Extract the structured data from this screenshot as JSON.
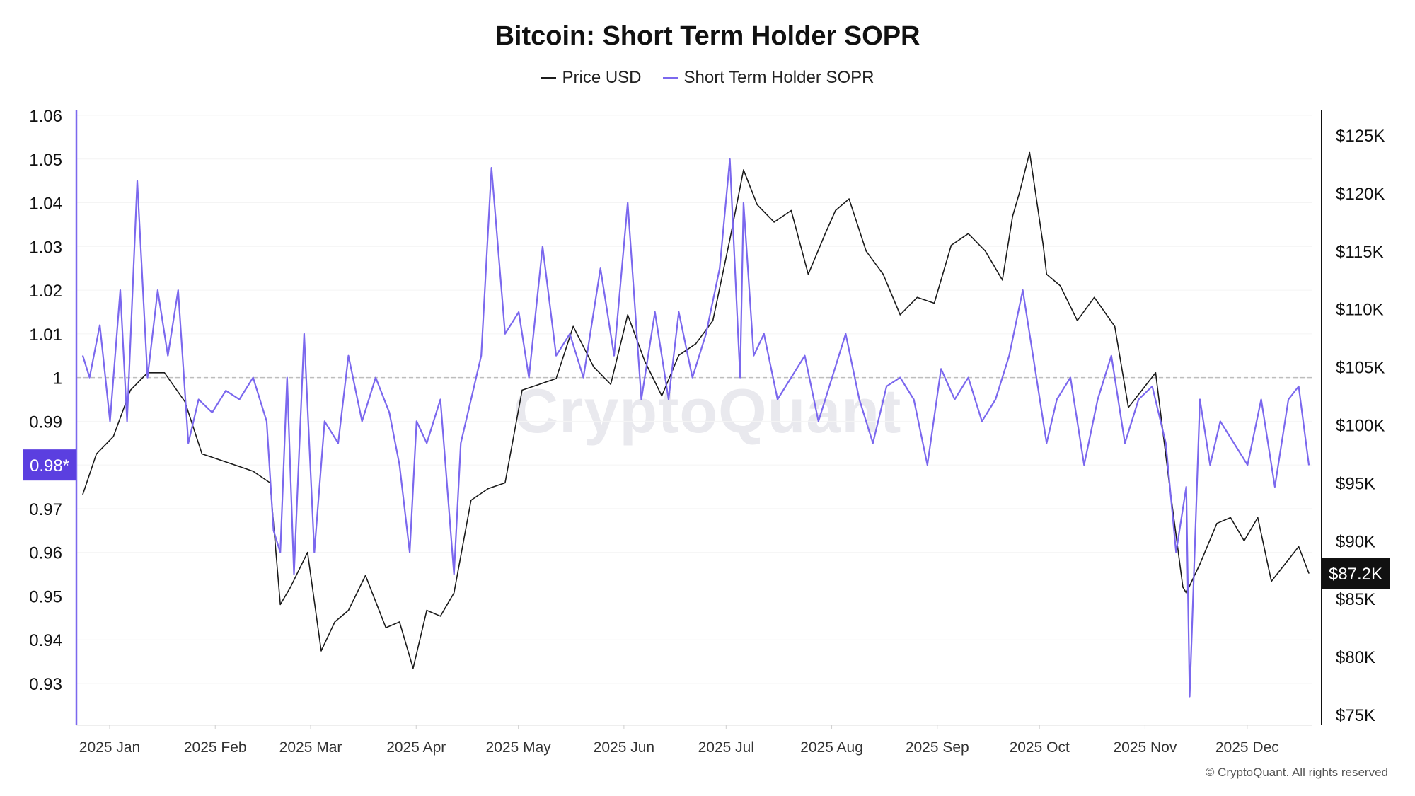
{
  "title": "Bitcoin: Short Term Holder SOPR",
  "watermark": "CryptoQuant",
  "copyright": "© CryptoQuant. All rights reserved",
  "colors": {
    "price": "#1a1a1a",
    "sopr": "#7b68ee",
    "axis_left": "#7b68ee",
    "badge_left": "#5b3fe0",
    "badge_right": "#111111",
    "ref_line": "#bdbdbd"
  },
  "legend": [
    {
      "name": "Price USD",
      "color": "#1a1a1a"
    },
    {
      "name": "Short Term Holder SOPR",
      "color": "#7b68ee"
    }
  ],
  "badges": {
    "left": "0.98*",
    "right": "$87.2K"
  },
  "chart_data": {
    "type": "line",
    "x_ticks": [
      "2025 Jan",
      "2025 Feb",
      "2025 Mar",
      "2025 Apr",
      "2025 May",
      "2025 Jun",
      "2025 Jul",
      "2025 Aug",
      "2025 Sep",
      "2025 Oct",
      "2025 Nov",
      "2025 Dec"
    ],
    "y_left": {
      "ticks": [
        "0.93",
        "0.94",
        "0.95",
        "0.96",
        "0.97",
        "0.98",
        "0.99",
        "1",
        "1.01",
        "1.02",
        "1.03",
        "1.04",
        "1.05",
        "1.06"
      ],
      "range": [
        0.92,
        1.06
      ]
    },
    "y_right": {
      "ticks": [
        "$75K",
        "$80K",
        "$85K",
        "$90K",
        "$95K",
        "$100K",
        "$105K",
        "$110K",
        "$115K",
        "$120K",
        "$125K"
      ],
      "range": [
        74000,
        126000
      ]
    },
    "reference_line": 1,
    "series": [
      {
        "name": "Price USD",
        "axis": "right",
        "x": [
          "2025-01-01",
          "2025-01-05",
          "2025-01-10",
          "2025-01-15",
          "2025-01-20",
          "2025-01-25",
          "2025-01-31",
          "2025-02-05",
          "2025-02-10",
          "2025-02-15",
          "2025-02-20",
          "2025-02-25",
          "2025-02-28",
          "2025-03-03",
          "2025-03-08",
          "2025-03-12",
          "2025-03-16",
          "2025-03-20",
          "2025-03-25",
          "2025-03-31",
          "2025-04-04",
          "2025-04-08",
          "2025-04-12",
          "2025-04-16",
          "2025-04-20",
          "2025-04-25",
          "2025-04-30",
          "2025-05-05",
          "2025-05-10",
          "2025-05-15",
          "2025-05-20",
          "2025-05-25",
          "2025-05-31",
          "2025-06-05",
          "2025-06-10",
          "2025-06-15",
          "2025-06-20",
          "2025-06-25",
          "2025-06-30",
          "2025-07-05",
          "2025-07-10",
          "2025-07-14",
          "2025-07-18",
          "2025-07-23",
          "2025-07-28",
          "2025-08-02",
          "2025-08-07",
          "2025-08-10",
          "2025-08-14",
          "2025-08-19",
          "2025-08-24",
          "2025-08-29",
          "2025-09-03",
          "2025-09-08",
          "2025-09-13",
          "2025-09-18",
          "2025-09-23",
          "2025-09-28",
          "2025-10-01",
          "2025-10-03",
          "2025-10-06",
          "2025-10-10",
          "2025-10-11",
          "2025-10-15",
          "2025-10-20",
          "2025-10-25",
          "2025-10-31",
          "2025-11-04",
          "2025-11-08",
          "2025-11-12",
          "2025-11-16",
          "2025-11-20",
          "2025-11-21",
          "2025-11-25",
          "2025-11-30",
          "2025-12-04",
          "2025-12-08",
          "2025-12-12",
          "2025-12-16",
          "2025-12-20",
          "2025-12-24",
          "2025-12-27"
        ],
        "values": [
          94000,
          97500,
          99000,
          103000,
          104500,
          104500,
          102000,
          97500,
          97000,
          96500,
          96000,
          95000,
          84500,
          86000,
          89000,
          80500,
          83000,
          84000,
          87000,
          82500,
          83000,
          79000,
          84000,
          83500,
          85500,
          93500,
          94500,
          95000,
          103000,
          103500,
          104000,
          108500,
          105000,
          103500,
          109500,
          105500,
          102500,
          106000,
          107000,
          109000,
          116000,
          122000,
          119000,
          117500,
          118500,
          113000,
          116500,
          118500,
          119500,
          115000,
          113000,
          109500,
          111000,
          110500,
          115500,
          116500,
          115000,
          112500,
          118000,
          120000,
          123500,
          115500,
          113000,
          112000,
          109000,
          111000,
          108500,
          101500,
          103000,
          104500,
          95000,
          86000,
          85500,
          88000,
          91500,
          92000,
          90000,
          92000,
          86500,
          88000,
          89500,
          87200
        ]
      },
      {
        "name": "Short Term Holder SOPR",
        "axis": "left",
        "x": [
          "2025-01-01",
          "2025-01-03",
          "2025-01-06",
          "2025-01-09",
          "2025-01-12",
          "2025-01-14",
          "2025-01-17",
          "2025-01-20",
          "2025-01-23",
          "2025-01-26",
          "2025-01-29",
          "2025-02-01",
          "2025-02-04",
          "2025-02-08",
          "2025-02-12",
          "2025-02-16",
          "2025-02-20",
          "2025-02-24",
          "2025-02-26",
          "2025-02-28",
          "2025-03-02",
          "2025-03-04",
          "2025-03-07",
          "2025-03-10",
          "2025-03-13",
          "2025-03-17",
          "2025-03-20",
          "2025-03-24",
          "2025-03-28",
          "2025-04-01",
          "2025-04-04",
          "2025-04-07",
          "2025-04-09",
          "2025-04-12",
          "2025-04-16",
          "2025-04-20",
          "2025-04-22",
          "2025-04-25",
          "2025-04-28",
          "2025-05-01",
          "2025-05-05",
          "2025-05-09",
          "2025-05-12",
          "2025-05-16",
          "2025-05-20",
          "2025-05-24",
          "2025-05-28",
          "2025-06-02",
          "2025-06-06",
          "2025-06-10",
          "2025-06-14",
          "2025-06-18",
          "2025-06-22",
          "2025-06-25",
          "2025-06-29",
          "2025-07-03",
          "2025-07-07",
          "2025-07-10",
          "2025-07-13",
          "2025-07-14",
          "2025-07-17",
          "2025-07-20",
          "2025-07-24",
          "2025-07-28",
          "2025-08-01",
          "2025-08-05",
          "2025-08-09",
          "2025-08-13",
          "2025-08-17",
          "2025-08-21",
          "2025-08-25",
          "2025-08-29",
          "2025-09-02",
          "2025-09-06",
          "2025-09-10",
          "2025-09-14",
          "2025-09-18",
          "2025-09-22",
          "2025-09-26",
          "2025-09-30",
          "2025-10-04",
          "2025-10-08",
          "2025-10-11",
          "2025-10-14",
          "2025-10-18",
          "2025-10-22",
          "2025-10-26",
          "2025-10-30",
          "2025-11-03",
          "2025-11-07",
          "2025-11-11",
          "2025-11-15",
          "2025-11-18",
          "2025-11-21",
          "2025-11-22",
          "2025-11-25",
          "2025-11-28",
          "2025-12-01",
          "2025-12-05",
          "2025-12-09",
          "2025-12-13",
          "2025-12-17",
          "2025-12-21",
          "2025-12-24",
          "2025-12-27"
        ],
        "values": [
          1.005,
          1.0,
          1.012,
          0.99,
          1.02,
          0.99,
          1.045,
          1.0,
          1.02,
          1.005,
          1.02,
          0.985,
          0.995,
          0.992,
          0.997,
          0.995,
          1.0,
          0.99,
          0.965,
          0.96,
          1.0,
          0.955,
          1.01,
          0.96,
          0.99,
          0.985,
          1.005,
          0.99,
          1.0,
          0.992,
          0.98,
          0.96,
          0.99,
          0.985,
          0.995,
          0.955,
          0.985,
          0.995,
          1.005,
          1.048,
          1.01,
          1.015,
          1.0,
          1.03,
          1.005,
          1.01,
          1.0,
          1.025,
          1.005,
          1.04,
          0.995,
          1.015,
          0.995,
          1.015,
          1.0,
          1.01,
          1.025,
          1.05,
          1.0,
          1.04,
          1.005,
          1.01,
          0.995,
          1.0,
          1.005,
          0.99,
          1.0,
          1.01,
          0.995,
          0.985,
          0.998,
          1.0,
          0.995,
          0.98,
          1.002,
          0.995,
          1.0,
          0.99,
          0.995,
          1.005,
          1.02,
          1.0,
          0.985,
          0.995,
          1.0,
          0.98,
          0.995,
          1.005,
          0.985,
          0.995,
          0.998,
          0.985,
          0.96,
          0.975,
          0.927,
          0.995,
          0.98,
          0.99,
          0.985,
          0.98,
          0.995,
          0.975,
          0.995,
          0.998,
          0.98
        ]
      }
    ]
  }
}
